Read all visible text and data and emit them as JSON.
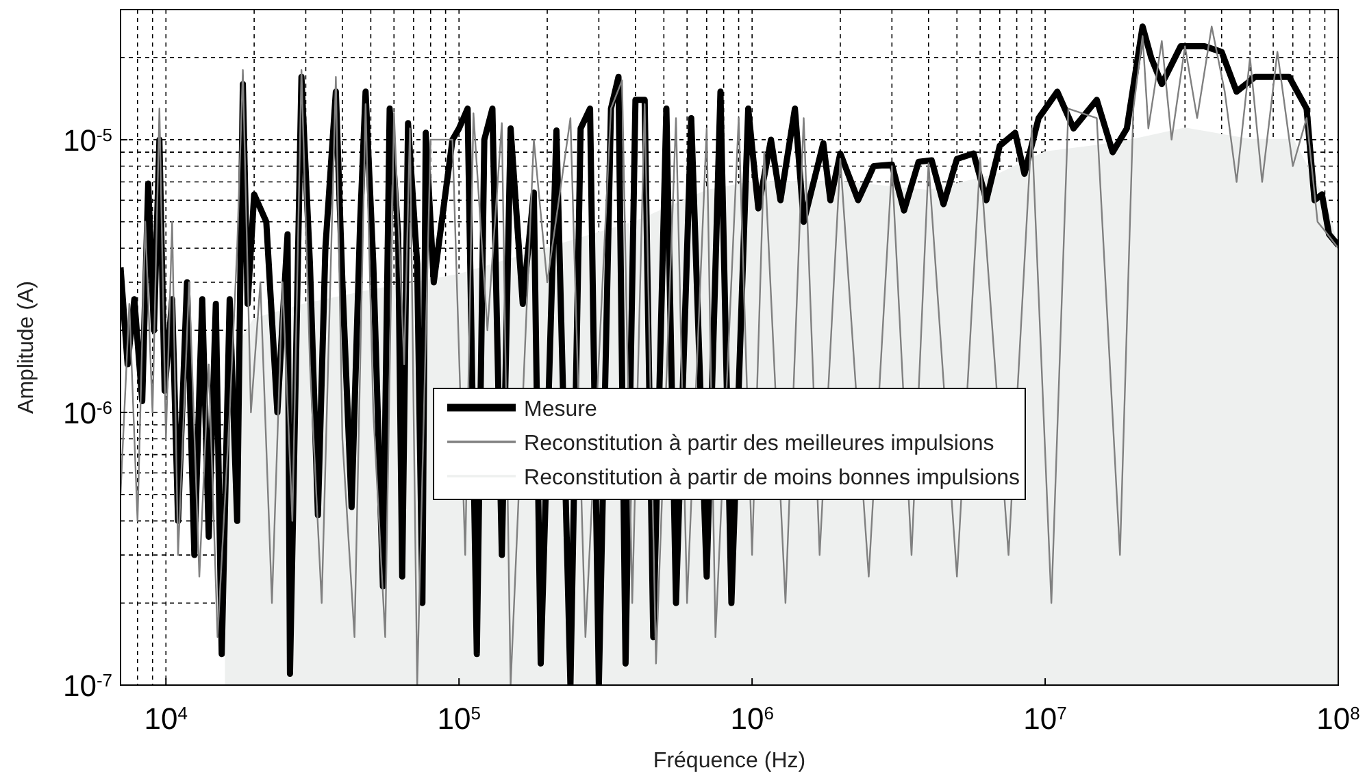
{
  "chart_data": {
    "type": "line",
    "xlabel": "Fréquence (Hz)",
    "ylabel": "Amplitude (A)",
    "log": "xy",
    "grid": true,
    "legend": "center",
    "xlim": [
      7000,
      100000000
    ],
    "ylim": [
      1e-07,
      3e-05
    ],
    "xticks": [
      {
        "value": 10000,
        "label": "10$^{4}$"
      },
      {
        "value": 100000,
        "label": "10$^{5}$"
      },
      {
        "value": 1000000,
        "label": "10$^{6}$"
      },
      {
        "value": 10000000,
        "label": "10$^{7}$"
      },
      {
        "value": 100000000,
        "label": "10$^{8}$"
      }
    ],
    "yticks": [
      {
        "value": 1e-07,
        "label": "10$^{-7}$"
      },
      {
        "value": 1e-06,
        "label": "10$^{-6}$"
      },
      {
        "value": 1e-05,
        "label": "10$^{-5}$"
      }
    ],
    "series": [
      {
        "name": "Mesure",
        "color": "#000000",
        "x": [
          7000,
          7400,
          7800,
          8300,
          8700,
          9100,
          9500,
          9900,
          10500,
          11000,
          11800,
          12500,
          13300,
          14000,
          14800,
          15500,
          16500,
          17500,
          18300,
          19000,
          20000,
          22000,
          24000,
          26000,
          26500,
          29000,
          31000,
          33000,
          35000,
          38000,
          40000,
          43000,
          46000,
          48000,
          51000,
          55000,
          58000,
          62000,
          64000,
          67000,
          72000,
          75000,
          77000,
          82000,
          95000,
          100000,
          107000,
          115000,
          122000,
          130000,
          140000,
          150000,
          165000,
          180000,
          190000,
          215000,
          240000,
          260000,
          280000,
          300000,
          330000,
          350000,
          370000,
          400000,
          430000,
          460000,
          510000,
          550000,
          620000,
          700000,
          780000,
          850000,
          970000,
          1050000,
          1160000,
          1250000,
          1400000,
          1500000,
          1750000,
          1850000,
          2000000,
          2300000,
          2600000,
          3000000,
          3300000,
          3700000,
          4100000,
          4500000,
          5000000,
          5700000,
          6300000,
          7000000,
          7900000,
          8500000,
          9500000,
          11000000,
          12500000,
          15000000,
          17000000,
          19000000,
          21500000,
          23000000,
          25000000,
          29000000,
          35000000,
          40000000,
          45000000,
          52000000,
          68000000,
          78000000,
          83000000,
          88000000,
          93000000,
          100000000
        ],
        "values": [
          3.4e-06,
          1.5e-06,
          2.6e-06,
          1.1e-06,
          6.9e-06,
          2e-06,
          1e-05,
          1.2e-06,
          2.6e-06,
          4e-07,
          3e-06,
          3e-07,
          2.6e-06,
          3.5e-07,
          2.5e-06,
          1.3e-07,
          2.6e-06,
          4e-07,
          1.6e-05,
          2.5e-06,
          6.3e-06,
          5e-06,
          1e-06,
          4.5e-06,
          1.1e-07,
          1.7e-05,
          3.5e-06,
          4.2e-07,
          4e-06,
          1.5e-05,
          3e-06,
          4.5e-07,
          5e-06,
          1.5e-05,
          3.5e-06,
          2.3e-07,
          1.3e-05,
          4.5e-06,
          2.5e-07,
          1.15e-05,
          3.5e-06,
          2e-07,
          1.06e-05,
          3e-06,
          1e-05,
          1.1e-05,
          1.3e-05,
          1.3e-07,
          1e-05,
          1.3e-05,
          3e-07,
          1.1e-05,
          2.5e-06,
          6.4e-06,
          1.2e-07,
          1.08e-05,
          1e-07,
          1.1e-05,
          1.3e-05,
          1e-07,
          1.3e-05,
          1.7e-05,
          1.2e-07,
          1.4e-05,
          1.4e-05,
          1.5e-07,
          1.3e-05,
          2e-07,
          1.2e-05,
          2.5e-07,
          1.5e-05,
          2e-07,
          1.3e-05,
          5.6e-06,
          1e-05,
          6e-06,
          1.3e-05,
          5e-06,
          9.7e-06,
          6e-06,
          8.9e-06,
          6e-06,
          8e-06,
          8.1e-06,
          5.5e-06,
          8.3e-06,
          8.4e-06,
          5.8e-06,
          8.5e-06,
          8.9e-06,
          6e-06,
          9.5e-06,
          1.06e-05,
          7.5e-06,
          1.2e-05,
          1.5e-05,
          1.1e-05,
          1.4e-05,
          9e-06,
          1.1e-05,
          2.6e-05,
          2e-05,
          1.6e-05,
          2.2e-05,
          2.2e-05,
          2.1e-05,
          1.5e-05,
          1.7e-05,
          1.7e-05,
          1.3e-05,
          6e-06,
          6.3e-06,
          4.5e-06,
          4.1e-06
        ]
      },
      {
        "name": "Reconstitution à partir des meilleures impulsions",
        "color": "#808080",
        "x": [
          7000,
          7500,
          8000,
          8500,
          9000,
          9500,
          10000,
          10500,
          11000,
          12000,
          13000,
          14000,
          15000,
          16500,
          17500,
          18300,
          19500,
          21000,
          23000,
          25000,
          27000,
          29000,
          31000,
          34000,
          38000,
          40000,
          44000,
          48000,
          51000,
          56000,
          60000,
          65000,
          68000,
          72000,
          80000,
          95000,
          105000,
          112000,
          125000,
          140000,
          150000,
          180000,
          200000,
          240000,
          270000,
          330000,
          360000,
          390000,
          430000,
          470000,
          550000,
          600000,
          700000,
          750000,
          900000,
          1000000,
          1100000,
          1300000,
          1500000,
          1700000,
          2000000,
          2500000,
          3000000,
          3500000,
          4000000,
          5000000,
          6000000,
          7500000,
          9000000,
          10500000,
          12000000,
          15000000,
          18000000,
          20000000,
          21500000,
          22500000,
          25000000,
          27000000,
          30000000,
          33000000,
          37000000,
          41000000,
          45000000,
          50000000,
          55000000,
          62000000,
          70000000,
          78000000,
          85000000,
          92000000,
          100000000
        ],
        "values": [
          5e-07,
          2.5e-06,
          4e-07,
          5e-06,
          1e-06,
          1.3e-05,
          8e-07,
          5e-06,
          3e-07,
          3e-06,
          2.5e-07,
          1.5e-06,
          1.5e-07,
          1e-06,
          4e-06,
          1.8e-05,
          1e-06,
          3e-06,
          2e-07,
          3e-06,
          4e-07,
          1.8e-05,
          1.5e-06,
          2e-07,
          1.7e-05,
          8e-07,
          1.5e-07,
          1.35e-05,
          1e-06,
          1.5e-07,
          1.25e-05,
          1.5e-06,
          1.1e-05,
          1e-07,
          1e-05,
          1e-05,
          3e-07,
          1.25e-05,
          2e-06,
          1.15e-05,
          1e-07,
          1e-05,
          3e-06,
          1.2e-05,
          1.5e-07,
          1.3e-05,
          1.65e-05,
          2e-07,
          1.35e-05,
          1.2e-07,
          1.2e-05,
          2e-07,
          1.1e-05,
          1.5e-07,
          1.2e-05,
          3e-07,
          9e-06,
          2e-07,
          1.2e-05,
          3e-07,
          8.5e-06,
          2.5e-07,
          8e-06,
          3e-07,
          8.2e-06,
          2.5e-07,
          8.5e-06,
          3e-07,
          1.1e-05,
          2e-07,
          1.3e-05,
          1.2e-05,
          3e-07,
          1.3e-05,
          2.4e-05,
          1.1e-05,
          2.3e-05,
          1e-05,
          2.2e-05,
          1.2e-05,
          2.6e-05,
          1.5e-05,
          7e-06,
          2e-05,
          7e-06,
          2.1e-05,
          8e-06,
          1.2e-05,
          5e-06,
          4.5e-06,
          4e-06
        ]
      },
      {
        "name": "Reconstitution à partir de moins bonnes impulsions",
        "color": "#eef0ef",
        "type": "area",
        "x": [
          16000,
          20000,
          30000,
          50000,
          100000,
          200000,
          400000,
          700000,
          1000000,
          2000000,
          4000000,
          7000000,
          10000000,
          15000000,
          20000000,
          30000000,
          50000000,
          70000000,
          90000000,
          100000000
        ],
        "values": [
          1.5e-06,
          2.2e-06,
          2.5e-06,
          2.8e-06,
          3.2e-06,
          4e-06,
          5e-06,
          6.5e-06,
          7e-06,
          7e-06,
          6.5e-06,
          7.5e-06,
          9e-06,
          9.5e-06,
          1e-05,
          1.1e-05,
          1e-05,
          1e-05,
          6e-06,
          4e-06
        ]
      }
    ]
  }
}
